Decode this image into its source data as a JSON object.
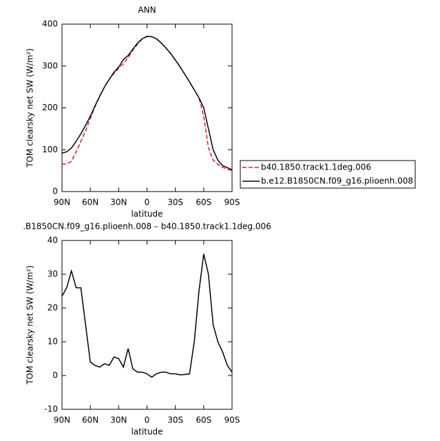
{
  "chart_data": [
    {
      "type": "line",
      "title": "ANN",
      "x_label": "latitude",
      "y_label": "TOM clearsky net SW (W/m²)",
      "x": [
        90,
        85,
        80,
        75,
        70,
        65,
        60,
        55,
        50,
        45,
        40,
        35,
        30,
        25,
        20,
        15,
        10,
        5,
        0,
        -5,
        -10,
        -15,
        -20,
        -25,
        -30,
        -35,
        -40,
        -45,
        -50,
        -55,
        -60,
        -65,
        -70,
        -75,
        -80,
        -85,
        -90
      ],
      "xlim": [
        90,
        -90
      ],
      "xticks": [
        {
          "value": 90,
          "label": "90N"
        },
        {
          "value": 60,
          "label": "60N"
        },
        {
          "value": 30,
          "label": "30N"
        },
        0,
        {
          "value": -30,
          "label": "30S"
        },
        {
          "value": -60,
          "label": "60S"
        },
        {
          "value": -90,
          "label": "90S"
        }
      ],
      "ylim": [
        0,
        400
      ],
      "yticks": [
        0,
        100,
        200,
        300,
        400
      ],
      "legend": "right",
      "series": [
        {
          "name": "b40.1850.track1.1deg.006",
          "color": "#e41a1c",
          "dashed": true,
          "values": [
            65,
            66,
            72,
            95,
            120,
            145,
            175,
            203,
            228,
            250,
            268,
            282,
            295,
            305,
            320,
            338,
            352,
            365,
            370,
            370,
            365,
            355,
            343,
            330,
            314,
            298,
            280,
            262,
            243,
            224,
            180,
            105,
            75,
            65,
            58,
            53,
            50
          ]
        },
        {
          "name": "b.e12.B1850CN.f09_g16.plioenh.008",
          "color": "#000000",
          "dashed": false,
          "values": [
            92,
            95,
            104,
            120,
            138,
            158,
            180,
            205,
            228,
            250,
            268,
            285,
            297,
            315,
            325,
            340,
            355,
            365,
            371,
            370,
            365,
            355,
            343,
            330,
            314,
            298,
            280,
            262,
            243,
            224,
            200,
            150,
            100,
            75,
            62,
            57,
            52
          ]
        }
      ]
    },
    {
      "type": "line",
      "title": ".B1850CN.f09_g16.plioenh.008 – b40.1850.track1.1deg.006",
      "x_label": "latitude",
      "y_label": "TOM clearsky net SW (W/m²)",
      "x": [
        90,
        85,
        80,
        75,
        70,
        65,
        60,
        55,
        50,
        45,
        40,
        35,
        30,
        25,
        20,
        15,
        10,
        5,
        0,
        -5,
        -10,
        -15,
        -20,
        -25,
        -30,
        -35,
        -40,
        -45,
        -50,
        -55,
        -60,
        -65,
        -70,
        -75,
        -80,
        -85,
        -90
      ],
      "xlim": [
        90,
        -90
      ],
      "xticks": [
        {
          "value": 90,
          "label": "90N"
        },
        {
          "value": 60,
          "label": "60N"
        },
        {
          "value": 30,
          "label": "30N"
        },
        0,
        {
          "value": -30,
          "label": "30S"
        },
        {
          "value": -60,
          "label": "60S"
        },
        {
          "value": -90,
          "label": "90S"
        }
      ],
      "ylim": [
        -10,
        40
      ],
      "yticks": [
        -10,
        0,
        10,
        20,
        30,
        40
      ],
      "series": [
        {
          "color": "#000000",
          "values": [
            23.5,
            26,
            31,
            26,
            26,
            15,
            4,
            3,
            2.5,
            3.5,
            3,
            5.5,
            5,
            2.5,
            8,
            2,
            1,
            1,
            0.5,
            -0.5,
            0.5,
            1,
            1,
            0.5,
            0.5,
            0.2,
            0.3,
            0.5,
            10,
            25,
            36,
            30,
            15,
            10,
            7,
            3,
            1
          ]
        }
      ]
    }
  ]
}
